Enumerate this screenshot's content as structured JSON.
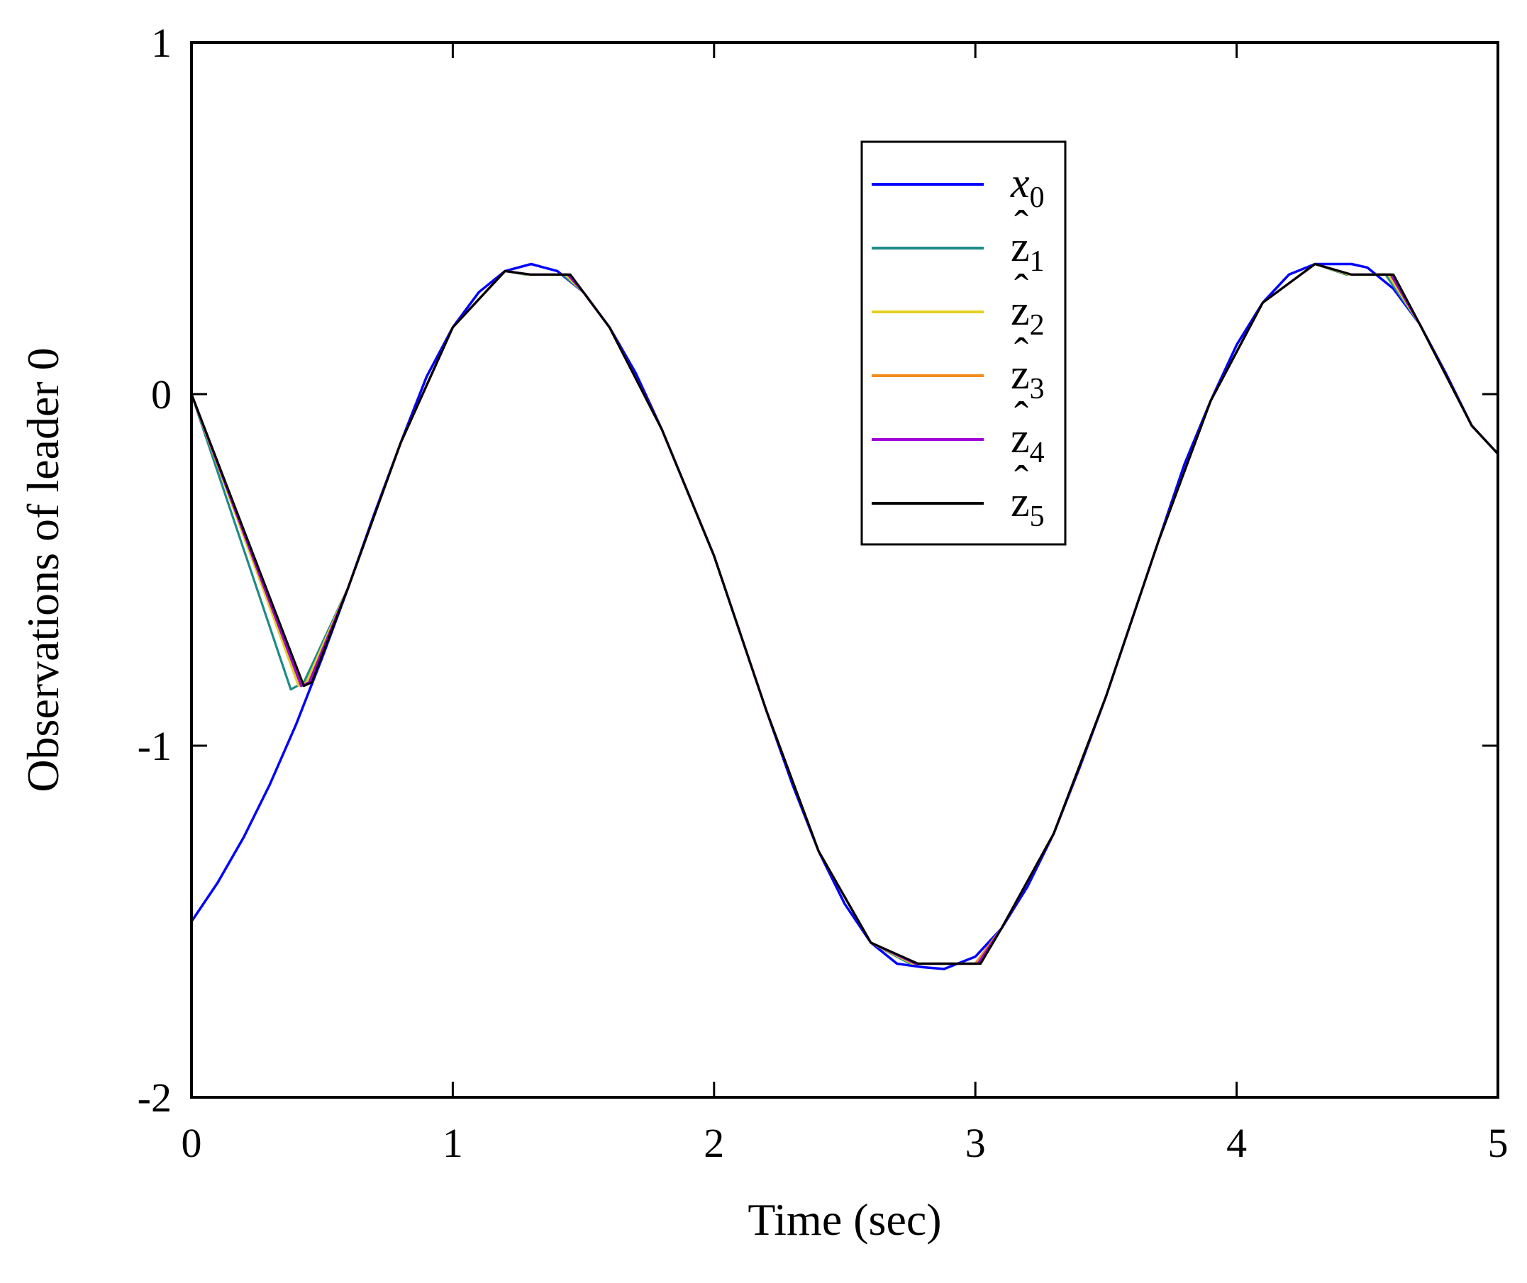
{
  "chart_data": {
    "type": "line",
    "title": "",
    "xlabel": "Time (sec)",
    "ylabel": "Observations of leader 0",
    "xlim": [
      0,
      5
    ],
    "ylim": [
      -2,
      1
    ],
    "xticks": [
      "0",
      "1",
      "2",
      "3",
      "4",
      "5"
    ],
    "yticks": [
      "-2",
      "-1",
      "0",
      "1"
    ],
    "grid": false,
    "legend_position": "top-center",
    "series": [
      {
        "name": "x",
        "name_sub": "0",
        "hat": false,
        "color": "#0000ff",
        "x": [
          0,
          0.1,
          0.2,
          0.3,
          0.4,
          0.5,
          0.6,
          0.7,
          0.8,
          0.9,
          1.0,
          1.1,
          1.2,
          1.3,
          1.4,
          1.5,
          1.6,
          1.7,
          1.8,
          1.9,
          2.0,
          2.1,
          2.2,
          2.3,
          2.4,
          2.5,
          2.6,
          2.7,
          2.8,
          2.88,
          3.0,
          3.1,
          3.2,
          3.3,
          3.4,
          3.5,
          3.6,
          3.7,
          3.8,
          3.9,
          4.0,
          4.1,
          4.2,
          4.3,
          4.44,
          4.5,
          4.6,
          4.7,
          4.8,
          4.9,
          5.0
        ],
        "y": [
          -1.5,
          -1.39,
          -1.26,
          -1.11,
          -0.94,
          -0.75,
          -0.55,
          -0.34,
          -0.14,
          0.05,
          0.19,
          0.29,
          0.35,
          0.37,
          0.35,
          0.29,
          0.19,
          0.06,
          -0.1,
          -0.28,
          -0.46,
          -0.68,
          -0.9,
          -1.11,
          -1.3,
          -1.45,
          -1.56,
          -1.62,
          -1.63,
          -1.635,
          -1.6,
          -1.52,
          -1.4,
          -1.25,
          -1.06,
          -0.86,
          -0.64,
          -0.42,
          -0.2,
          -0.02,
          0.14,
          0.26,
          0.34,
          0.37,
          0.37,
          0.36,
          0.3,
          0.2,
          0.06,
          -0.09,
          -0.17
        ]
      },
      {
        "name": "z",
        "name_sub": "1",
        "hat": true,
        "color": "#1f8a8a",
        "x": [
          0,
          0.38,
          0.43,
          0.6,
          0.8,
          1.0,
          1.2,
          1.28,
          1.42,
          1.5,
          1.6,
          1.8,
          2.0,
          2.2,
          2.4,
          2.6,
          2.75,
          2.9,
          3.0,
          3.1,
          3.3,
          3.5,
          3.7,
          3.9,
          4.1,
          4.3,
          4.42,
          4.57,
          4.7,
          4.9,
          5.0
        ],
        "y": [
          0,
          -0.84,
          -0.82,
          -0.55,
          -0.14,
          0.19,
          0.35,
          0.34,
          0.34,
          0.29,
          0.19,
          -0.1,
          -0.46,
          -0.9,
          -1.3,
          -1.56,
          -1.62,
          -1.62,
          -1.62,
          -1.52,
          -1.25,
          -0.86,
          -0.42,
          -0.02,
          0.26,
          0.37,
          0.34,
          0.34,
          0.2,
          -0.09,
          -0.17
        ]
      },
      {
        "name": "z",
        "name_sub": "2",
        "hat": true,
        "color": "#e5cf21",
        "x": [
          0,
          0.41,
          0.44,
          0.6,
          0.8,
          1.0,
          1.2,
          1.29,
          1.43,
          1.5,
          1.6,
          1.8,
          2.0,
          2.2,
          2.4,
          2.6,
          2.76,
          2.9,
          3.0,
          3.1,
          3.3,
          3.5,
          3.7,
          3.9,
          4.1,
          4.3,
          4.43,
          4.58,
          4.7,
          4.9,
          5.0
        ],
        "y": [
          0,
          -0.83,
          -0.82,
          -0.55,
          -0.14,
          0.19,
          0.35,
          0.34,
          0.34,
          0.29,
          0.19,
          -0.1,
          -0.46,
          -0.9,
          -1.3,
          -1.56,
          -1.62,
          -1.62,
          -1.62,
          -1.52,
          -1.25,
          -0.86,
          -0.42,
          -0.02,
          0.26,
          0.37,
          0.34,
          0.34,
          0.2,
          -0.09,
          -0.17
        ]
      },
      {
        "name": "z",
        "name_sub": "3",
        "hat": true,
        "color": "#f28c1f",
        "x": [
          0,
          0.42,
          0.45,
          0.6,
          0.8,
          1.0,
          1.2,
          1.3,
          1.44,
          1.5,
          1.6,
          1.8,
          2.0,
          2.2,
          2.4,
          2.6,
          2.77,
          2.9,
          3.0,
          3.1,
          3.3,
          3.5,
          3.7,
          3.9,
          4.1,
          4.3,
          4.44,
          4.59,
          4.7,
          4.9,
          5.0
        ],
        "y": [
          0,
          -0.83,
          -0.82,
          -0.55,
          -0.14,
          0.19,
          0.35,
          0.34,
          0.34,
          0.29,
          0.19,
          -0.1,
          -0.46,
          -0.9,
          -1.3,
          -1.56,
          -1.62,
          -1.62,
          -1.62,
          -1.52,
          -1.25,
          -0.86,
          -0.42,
          -0.02,
          0.26,
          0.37,
          0.34,
          0.34,
          0.2,
          -0.09,
          -0.17
        ]
      },
      {
        "name": "z",
        "name_sub": "4",
        "hat": true,
        "color": "#a000d8",
        "x": [
          0,
          0.42,
          0.45,
          0.6,
          0.8,
          1.0,
          1.2,
          1.3,
          1.44,
          1.5,
          1.6,
          1.8,
          2.0,
          2.2,
          2.4,
          2.6,
          2.77,
          2.9,
          3.01,
          3.1,
          3.3,
          3.5,
          3.7,
          3.9,
          4.1,
          4.3,
          4.44,
          4.59,
          4.7,
          4.9,
          5.0
        ],
        "y": [
          0,
          -0.83,
          -0.82,
          -0.55,
          -0.14,
          0.19,
          0.35,
          0.34,
          0.34,
          0.29,
          0.19,
          -0.1,
          -0.46,
          -0.9,
          -1.3,
          -1.56,
          -1.62,
          -1.62,
          -1.62,
          -1.52,
          -1.25,
          -0.86,
          -0.42,
          -0.02,
          0.26,
          0.37,
          0.34,
          0.34,
          0.2,
          -0.09,
          -0.17
        ]
      },
      {
        "name": "z",
        "name_sub": "5",
        "hat": true,
        "color": "#000000",
        "x": [
          0,
          0.43,
          0.46,
          0.6,
          0.8,
          1.0,
          1.2,
          1.3,
          1.45,
          1.5,
          1.6,
          1.8,
          2.0,
          2.2,
          2.4,
          2.6,
          2.78,
          2.9,
          3.02,
          3.1,
          3.3,
          3.5,
          3.7,
          3.9,
          4.1,
          4.3,
          4.44,
          4.6,
          4.7,
          4.9,
          5.0
        ],
        "y": [
          0,
          -0.83,
          -0.82,
          -0.55,
          -0.14,
          0.19,
          0.35,
          0.34,
          0.34,
          0.29,
          0.19,
          -0.1,
          -0.46,
          -0.9,
          -1.3,
          -1.56,
          -1.62,
          -1.62,
          -1.62,
          -1.52,
          -1.25,
          -0.86,
          -0.42,
          -0.02,
          0.26,
          0.37,
          0.34,
          0.34,
          0.2,
          -0.09,
          -0.17
        ]
      }
    ]
  }
}
